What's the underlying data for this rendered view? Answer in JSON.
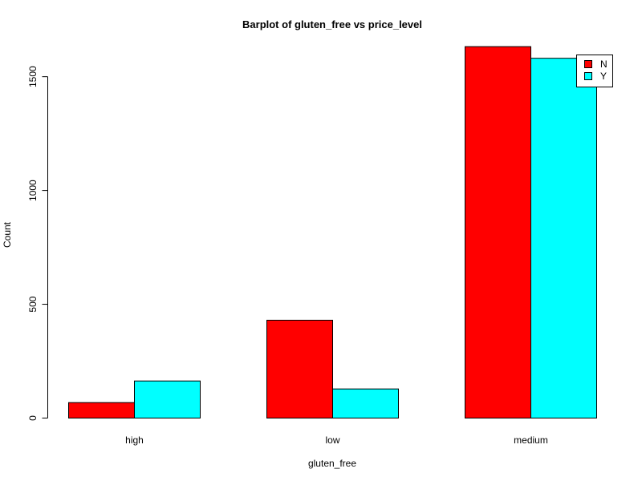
{
  "chart_data": {
    "type": "bar",
    "title": "Barplot of gluten_free vs price_level",
    "xlabel": "gluten_free",
    "ylabel": "Count",
    "categories": [
      "high",
      "low",
      "medium"
    ],
    "series": [
      {
        "name": "N",
        "color": "#ff0000",
        "values": [
          68,
          430,
          1632
        ]
      },
      {
        "name": "Y",
        "color": "#00ffff",
        "values": [
          163,
          128,
          1581
        ]
      }
    ],
    "yticks": [
      0,
      500,
      1000,
      1500
    ],
    "ylim": [
      0,
      1632
    ],
    "grid": false,
    "legend_position": "top-right"
  }
}
